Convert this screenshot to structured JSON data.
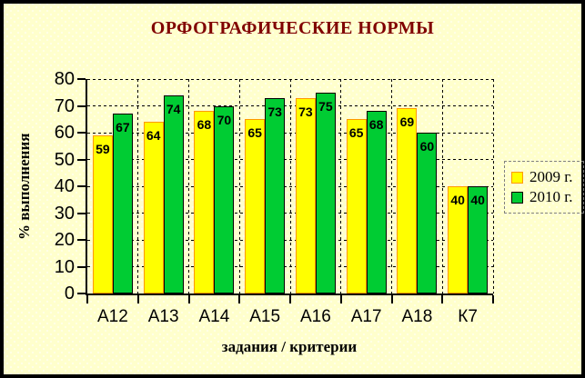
{
  "chart_data": {
    "type": "bar",
    "title": "ОРФОГРАФИЧЕСКИЕ НОРМЫ",
    "categories": [
      "А12",
      "А13",
      "А14",
      "А15",
      "А16",
      "А17",
      "А18",
      "К7"
    ],
    "series": [
      {
        "name": "2009 г.",
        "values": [
          59,
          64,
          68,
          65,
          73,
          65,
          69,
          40
        ],
        "fill": "#FFFF00",
        "border": "#FF9900"
      },
      {
        "name": "2010 г.",
        "values": [
          67,
          74,
          70,
          73,
          75,
          68,
          60,
          40
        ],
        "fill": "#00CC33",
        "border": "#000000"
      }
    ],
    "xlabel": "задания / критерии",
    "ylabel": "% выполнения",
    "ylim": [
      0,
      80
    ],
    "yticks": [
      0,
      10,
      20,
      30,
      40,
      50,
      60,
      70,
      80
    ],
    "grid": true,
    "data_labels": true,
    "legend_position": "right"
  },
  "colors": {
    "background": "#FFFFCC",
    "title_text": "#800000",
    "axis_text": "#000000",
    "gridline": "#000000",
    "legend_border": "#808080",
    "frame_border": "#000000"
  }
}
